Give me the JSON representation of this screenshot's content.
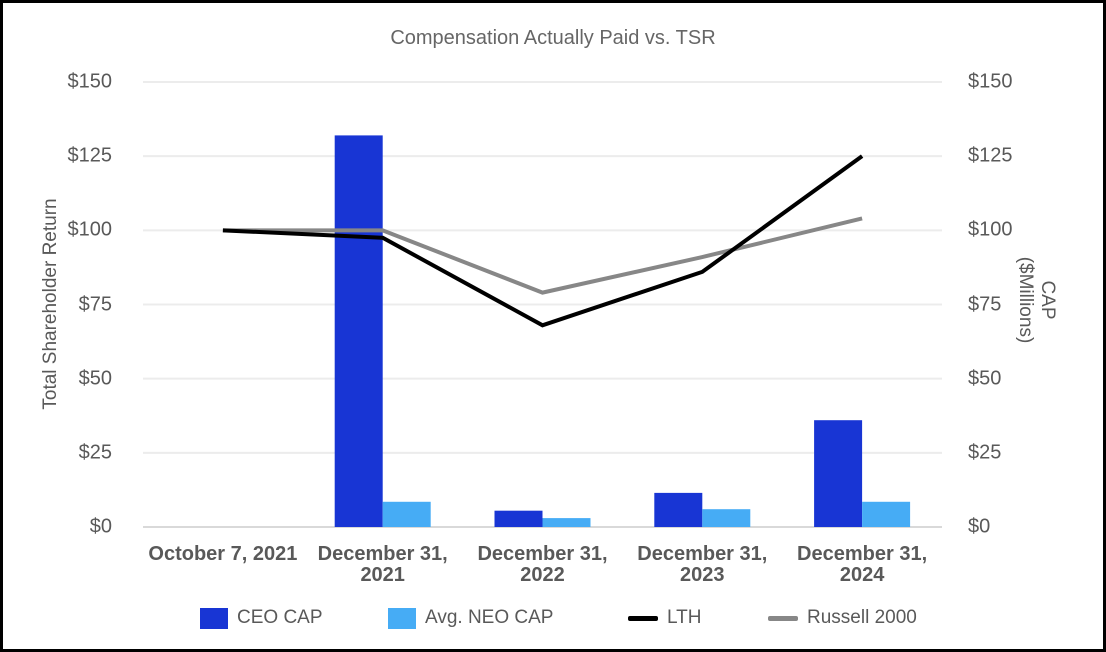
{
  "chart": {
    "title": "Compensation Actually Paid vs. TSR",
    "left_axis_title": "Total Shareholder Return",
    "right_axis_title_lines": [
      "CAP",
      "($Millions)"
    ]
  },
  "chart_data": {
    "type": "combo-bar-line",
    "title": "Compensation Actually Paid vs. TSR",
    "categories": [
      "October 7, 2021",
      "December 31, 2021",
      "December 31, 2022",
      "December 31, 2023",
      "December 31, 2024"
    ],
    "xtick_lines": [
      [
        "October 7, 2021"
      ],
      [
        "December 31,",
        "2021"
      ],
      [
        "December 31,",
        "2022"
      ],
      [
        "December 31,",
        "2023"
      ],
      [
        "December 31,",
        "2024"
      ]
    ],
    "bar_series": [
      {
        "name": "CEO CAP",
        "color": "#1835D4",
        "values": [
          0,
          132,
          5.5,
          11.5,
          36
        ]
      },
      {
        "name": "Avg. NEO CAP",
        "color": "#46ACF5",
        "values": [
          0,
          8.5,
          3,
          6,
          8.5
        ]
      }
    ],
    "line_series": [
      {
        "name": "LTH",
        "color": "#000000",
        "values": [
          100,
          97.5,
          68,
          86,
          125
        ]
      },
      {
        "name": "Russell 2000",
        "color": "#878787",
        "values": [
          100,
          100,
          79,
          91,
          104
        ]
      }
    ],
    "ylabel_left": "Total Shareholder Return",
    "ylabel_right": "CAP ($Millions)",
    "ylim": [
      0,
      150
    ],
    "yticks": [
      0,
      25,
      50,
      75,
      100,
      125,
      150
    ],
    "ytick_labels": [
      "$0",
      "$25",
      "$50",
      "$75",
      "$100",
      "$125",
      "$150"
    ],
    "grid": true,
    "legend_position": "bottom"
  },
  "legend": {
    "items": [
      {
        "label": "CEO CAP",
        "swatch": "square",
        "color": "#1835D4"
      },
      {
        "label": "Avg. NEO CAP",
        "swatch": "square",
        "color": "#46ACF5"
      },
      {
        "label": "LTH",
        "swatch": "line",
        "color": "#000000"
      },
      {
        "label": "Russell 2000",
        "swatch": "line",
        "color": "#878787"
      }
    ]
  },
  "colors": {
    "background": "#ffffff",
    "border": "#000000",
    "gridline": "#ececec",
    "baseline": "#d9d9d9",
    "title_text": "#666666",
    "tick_text": "#595959",
    "xtick_text": "#595959",
    "legend_text": "#595959"
  }
}
